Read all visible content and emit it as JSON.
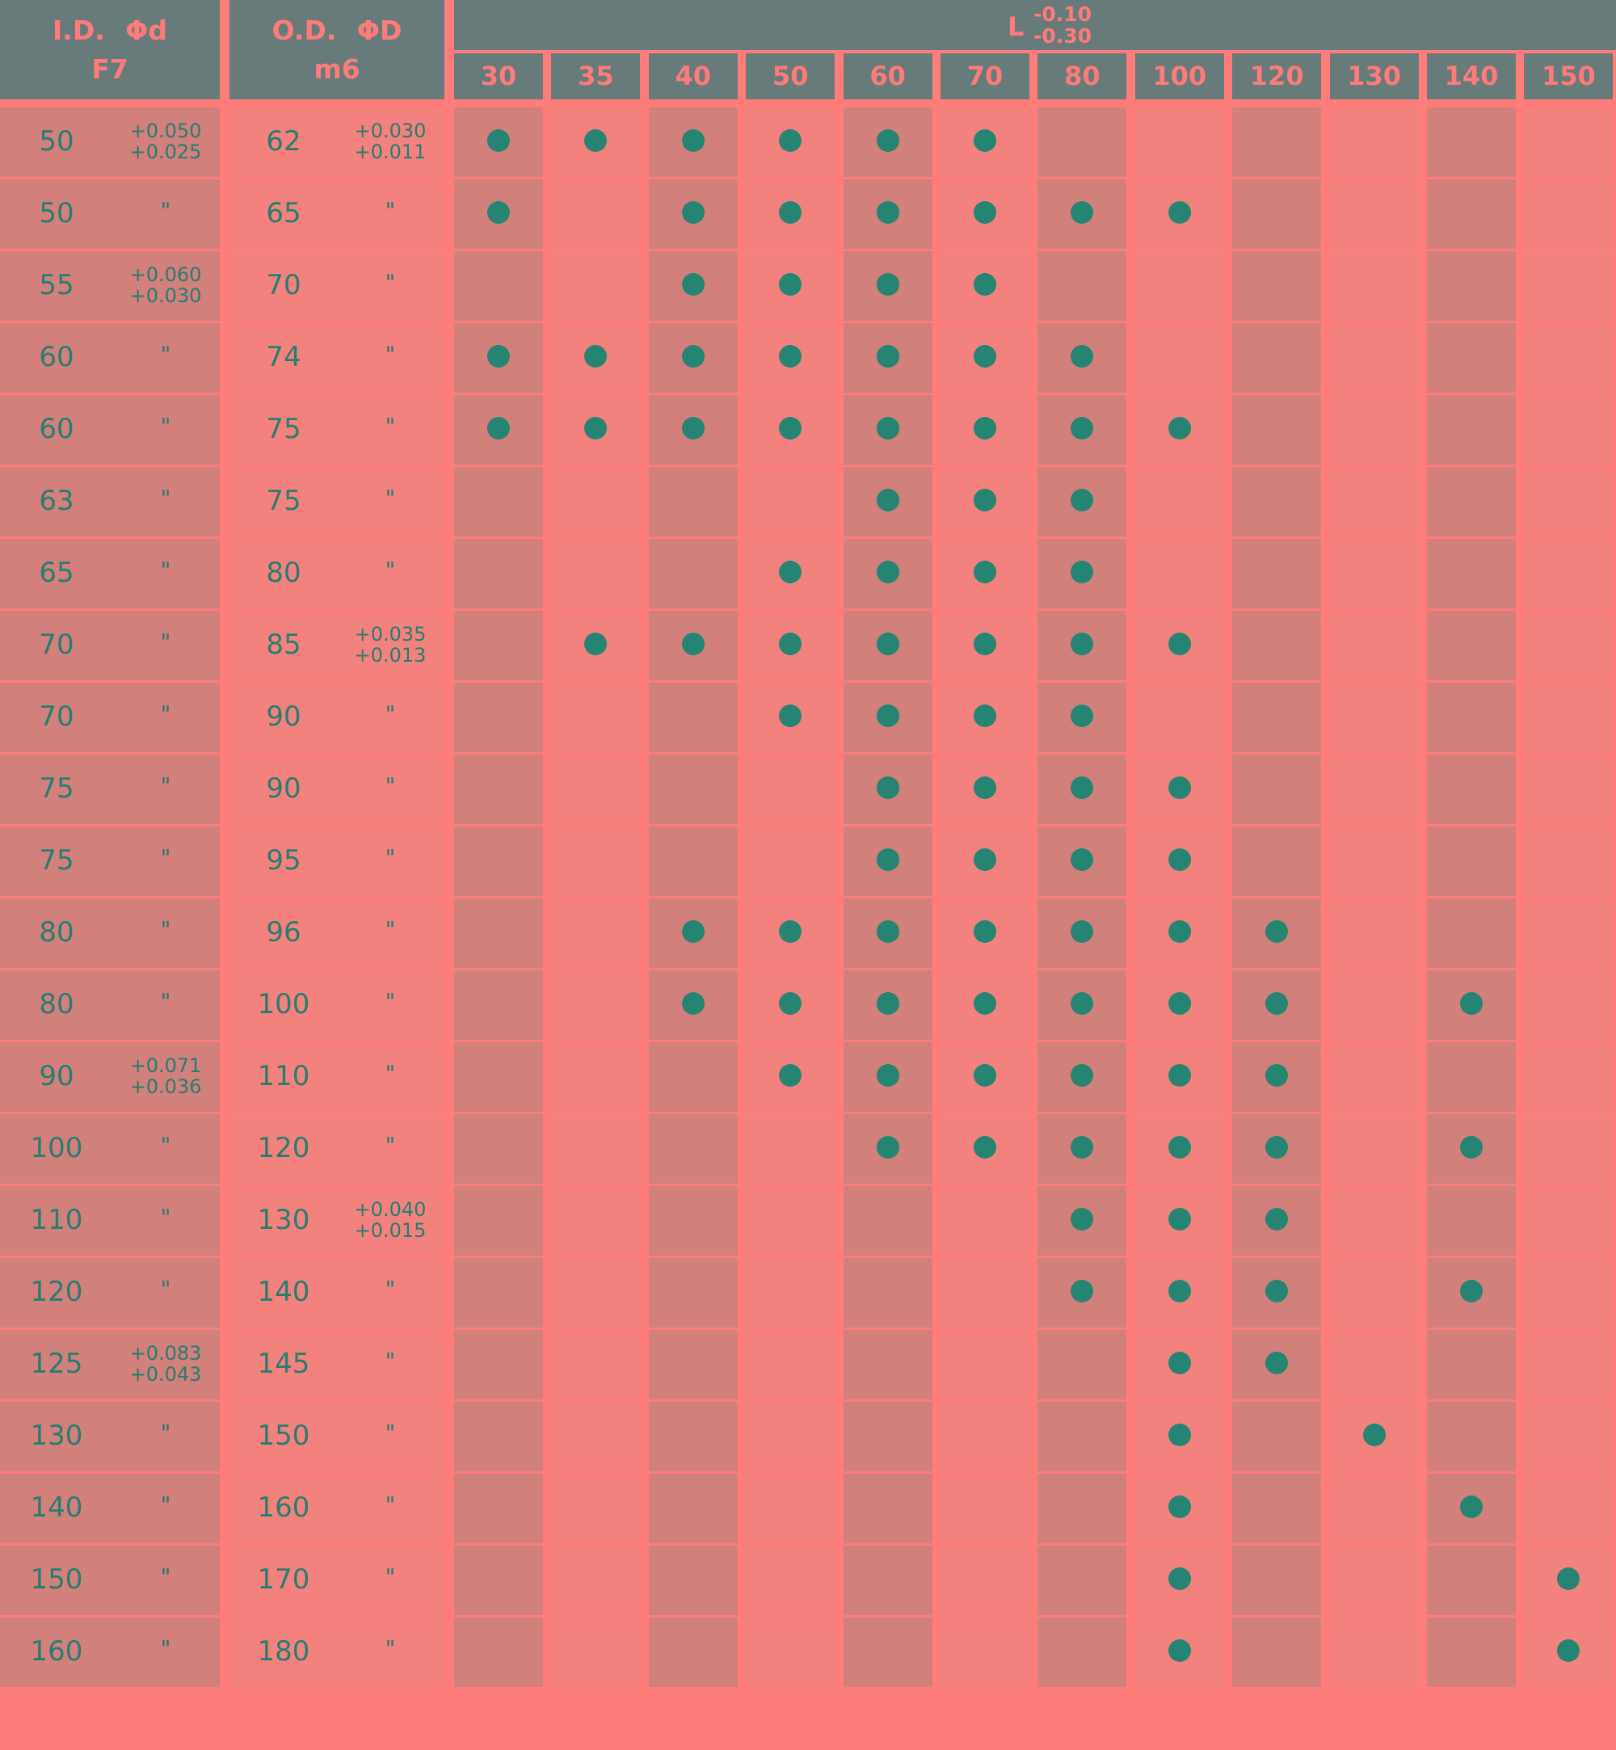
{
  "header": {
    "id_label": "I.D.",
    "id_symbol": "Φd",
    "id_grade": "F7",
    "od_label": "O.D.",
    "od_symbol": "ΦD",
    "od_grade": "m6",
    "length_label": "L",
    "length_tol_upper": "-0.10",
    "length_tol_lower": "-0.30"
  },
  "lengths": [
    "30",
    "35",
    "40",
    "50",
    "60",
    "70",
    "80",
    "100",
    "120",
    "130",
    "140",
    "150"
  ],
  "colors": {
    "background": "#fe7c79",
    "header": "#677b7b",
    "cell_dark": "#d1807c",
    "cell_light": "#f3827e",
    "text": "#277d70",
    "dot": "#268473"
  },
  "rows": [
    {
      "id": "50",
      "id_tol": [
        "+0.050",
        "+0.025"
      ],
      "od": "62",
      "od_tol": [
        "+0.030",
        "+0.011"
      ],
      "avail": [
        1,
        1,
        1,
        1,
        1,
        1,
        0,
        0,
        0,
        0,
        0,
        0
      ]
    },
    {
      "id": "50",
      "id_tol": [
        "\""
      ],
      "od": "65",
      "od_tol": [
        "\""
      ],
      "avail": [
        1,
        0,
        1,
        1,
        1,
        1,
        1,
        1,
        0,
        0,
        0,
        0
      ]
    },
    {
      "id": "55",
      "id_tol": [
        "+0.060",
        "+0.030"
      ],
      "od": "70",
      "od_tol": [
        "\""
      ],
      "avail": [
        0,
        0,
        1,
        1,
        1,
        1,
        0,
        0,
        0,
        0,
        0,
        0
      ]
    },
    {
      "id": "60",
      "id_tol": [
        "\""
      ],
      "od": "74",
      "od_tol": [
        "\""
      ],
      "avail": [
        1,
        1,
        1,
        1,
        1,
        1,
        1,
        0,
        0,
        0,
        0,
        0
      ]
    },
    {
      "id": "60",
      "id_tol": [
        "\""
      ],
      "od": "75",
      "od_tol": [
        "\""
      ],
      "avail": [
        1,
        1,
        1,
        1,
        1,
        1,
        1,
        1,
        0,
        0,
        0,
        0
      ]
    },
    {
      "id": "63",
      "id_tol": [
        "\""
      ],
      "od": "75",
      "od_tol": [
        "\""
      ],
      "avail": [
        0,
        0,
        0,
        0,
        1,
        1,
        1,
        0,
        0,
        0,
        0,
        0
      ]
    },
    {
      "id": "65",
      "id_tol": [
        "\""
      ],
      "od": "80",
      "od_tol": [
        "\""
      ],
      "avail": [
        0,
        0,
        0,
        1,
        1,
        1,
        1,
        0,
        0,
        0,
        0,
        0
      ]
    },
    {
      "id": "70",
      "id_tol": [
        "\""
      ],
      "od": "85",
      "od_tol": [
        "+0.035",
        "+0.013"
      ],
      "avail": [
        0,
        1,
        1,
        1,
        1,
        1,
        1,
        1,
        0,
        0,
        0,
        0
      ]
    },
    {
      "id": "70",
      "id_tol": [
        "\""
      ],
      "od": "90",
      "od_tol": [
        "\""
      ],
      "avail": [
        0,
        0,
        0,
        1,
        1,
        1,
        1,
        0,
        0,
        0,
        0,
        0
      ]
    },
    {
      "id": "75",
      "id_tol": [
        "\""
      ],
      "od": "90",
      "od_tol": [
        "\""
      ],
      "avail": [
        0,
        0,
        0,
        0,
        1,
        1,
        1,
        1,
        0,
        0,
        0,
        0
      ]
    },
    {
      "id": "75",
      "id_tol": [
        "\""
      ],
      "od": "95",
      "od_tol": [
        "\""
      ],
      "avail": [
        0,
        0,
        0,
        0,
        1,
        1,
        1,
        1,
        0,
        0,
        0,
        0
      ]
    },
    {
      "id": "80",
      "id_tol": [
        "\""
      ],
      "od": "96",
      "od_tol": [
        "\""
      ],
      "avail": [
        0,
        0,
        1,
        1,
        1,
        1,
        1,
        1,
        1,
        0,
        0,
        0
      ]
    },
    {
      "id": "80",
      "id_tol": [
        "\""
      ],
      "od": "100",
      "od_tol": [
        "\""
      ],
      "avail": [
        0,
        0,
        1,
        1,
        1,
        1,
        1,
        1,
        1,
        0,
        1,
        0
      ]
    },
    {
      "id": "90",
      "id_tol": [
        "+0.071",
        "+0.036"
      ],
      "od": "110",
      "od_tol": [
        "\""
      ],
      "avail": [
        0,
        0,
        0,
        1,
        1,
        1,
        1,
        1,
        1,
        0,
        0,
        0
      ]
    },
    {
      "id": "100",
      "id_tol": [
        "\""
      ],
      "od": "120",
      "od_tol": [
        "\""
      ],
      "avail": [
        0,
        0,
        0,
        0,
        1,
        1,
        1,
        1,
        1,
        0,
        1,
        0
      ]
    },
    {
      "id": "110",
      "id_tol": [
        "\""
      ],
      "od": "130",
      "od_tol": [
        "+0.040",
        "+0.015"
      ],
      "avail": [
        0,
        0,
        0,
        0,
        0,
        0,
        1,
        1,
        1,
        0,
        0,
        0
      ]
    },
    {
      "id": "120",
      "id_tol": [
        "\""
      ],
      "od": "140",
      "od_tol": [
        "\""
      ],
      "avail": [
        0,
        0,
        0,
        0,
        0,
        0,
        1,
        1,
        1,
        0,
        1,
        0
      ]
    },
    {
      "id": "125",
      "id_tol": [
        "+0.083",
        "+0.043"
      ],
      "od": "145",
      "od_tol": [
        "\""
      ],
      "avail": [
        0,
        0,
        0,
        0,
        0,
        0,
        0,
        1,
        1,
        0,
        0,
        0
      ]
    },
    {
      "id": "130",
      "id_tol": [
        "\""
      ],
      "od": "150",
      "od_tol": [
        "\""
      ],
      "avail": [
        0,
        0,
        0,
        0,
        0,
        0,
        0,
        1,
        0,
        1,
        0,
        0
      ]
    },
    {
      "id": "140",
      "id_tol": [
        "\""
      ],
      "od": "160",
      "od_tol": [
        "\""
      ],
      "avail": [
        0,
        0,
        0,
        0,
        0,
        0,
        0,
        1,
        0,
        0,
        1,
        0
      ]
    },
    {
      "id": "150",
      "id_tol": [
        "\""
      ],
      "od": "170",
      "od_tol": [
        "\""
      ],
      "avail": [
        0,
        0,
        0,
        0,
        0,
        0,
        0,
        1,
        0,
        0,
        0,
        1
      ]
    },
    {
      "id": "160",
      "id_tol": [
        "\""
      ],
      "od": "180",
      "od_tol": [
        "\""
      ],
      "avail": [
        0,
        0,
        0,
        0,
        0,
        0,
        0,
        1,
        0,
        0,
        0,
        1
      ]
    }
  ]
}
